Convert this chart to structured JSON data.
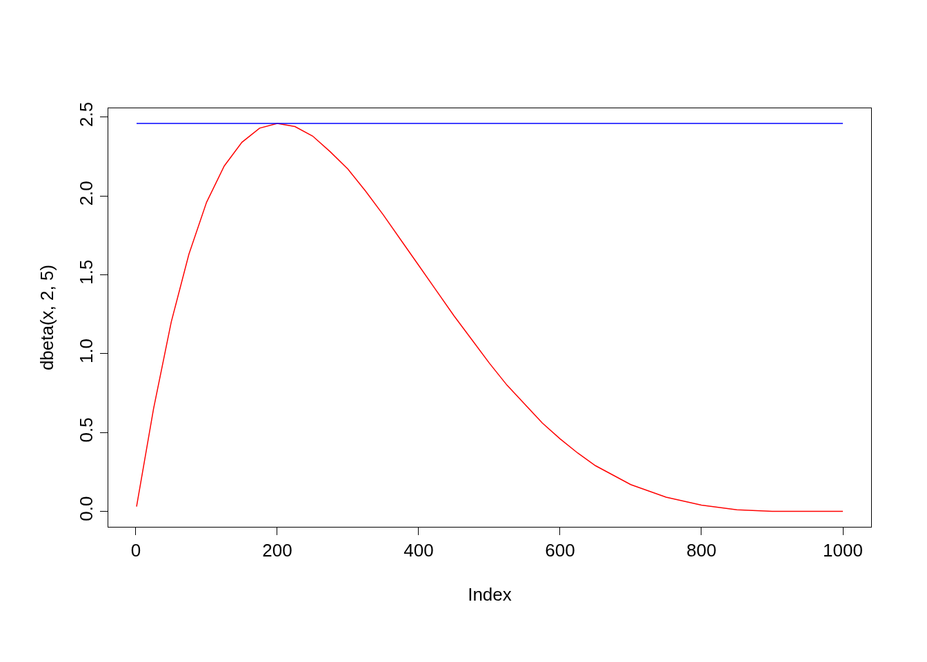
{
  "chart_data": {
    "type": "line",
    "xlabel": "Index",
    "ylabel": "dbeta(x, 2, 5)",
    "xlim": [
      -39,
      1040
    ],
    "xticks": [
      0,
      200,
      400,
      600,
      800,
      1000
    ],
    "ylim": [
      -0.098,
      2.556
    ],
    "yticks": [
      {
        "value": 0,
        "label": "0.0"
      },
      {
        "value": 0.5,
        "label": "0.5"
      },
      {
        "value": 1,
        "label": "1.0"
      },
      {
        "value": 1.5,
        "label": "1.5"
      },
      {
        "value": 2,
        "label": "2.0"
      },
      {
        "value": 2.5,
        "label": "2.5"
      }
    ],
    "marker": "none",
    "line_style": "solid",
    "series": [
      {
        "color": "#ff0000",
        "x": [
          1,
          25,
          50,
          75,
          100,
          125,
          150,
          175,
          200,
          225,
          250,
          275,
          300,
          325,
          350,
          375,
          400,
          425,
          450,
          475,
          500,
          525,
          550,
          575,
          600,
          625,
          650,
          675,
          700,
          750,
          800,
          850,
          900,
          950,
          1000
        ],
        "values": [
          0.03,
          0.65,
          1.2,
          1.63,
          1.96,
          2.19,
          2.34,
          2.43,
          2.46,
          2.44,
          2.38,
          2.28,
          2.17,
          2.03,
          1.88,
          1.72,
          1.56,
          1.4,
          1.24,
          1.09,
          0.94,
          0.8,
          0.68,
          0.56,
          0.46,
          0.37,
          0.29,
          0.23,
          0.17,
          0.09,
          0.04,
          0.01,
          0.0,
          0.0,
          0.0
        ]
      },
      {
        "color": "#0000ff",
        "x": [
          1,
          1000
        ],
        "values": [
          2.46,
          2.46
        ]
      }
    ]
  }
}
